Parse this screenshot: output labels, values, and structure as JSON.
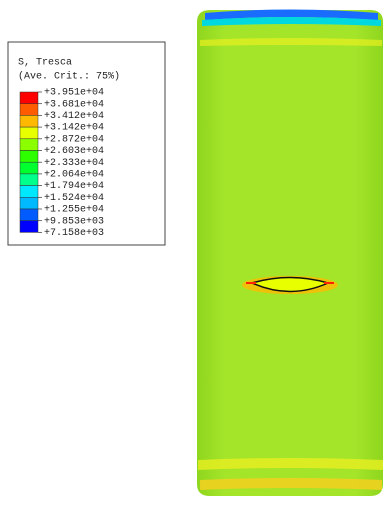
{
  "legend": {
    "title": "S, Tresca",
    "subtitle": "(Ave. Crit.: 75%)",
    "labels": [
      "+3.951e+04",
      "+3.681e+04",
      "+3.412e+04",
      "+3.142e+04",
      "+2.872e+04",
      "+2.603e+04",
      "+2.333e+04",
      "+2.064e+04",
      "+1.794e+04",
      "+1.524e+04",
      "+1.255e+04",
      "+9.853e+03",
      "+7.158e+03"
    ],
    "colors": [
      "#ff0000",
      "#ff5c00",
      "#ffb900",
      "#e8ff00",
      "#8bff00",
      "#2eff00",
      "#00ff2e",
      "#00ff8b",
      "#00e8ff",
      "#00b9ff",
      "#005cff",
      "#0000ff"
    ]
  }
}
